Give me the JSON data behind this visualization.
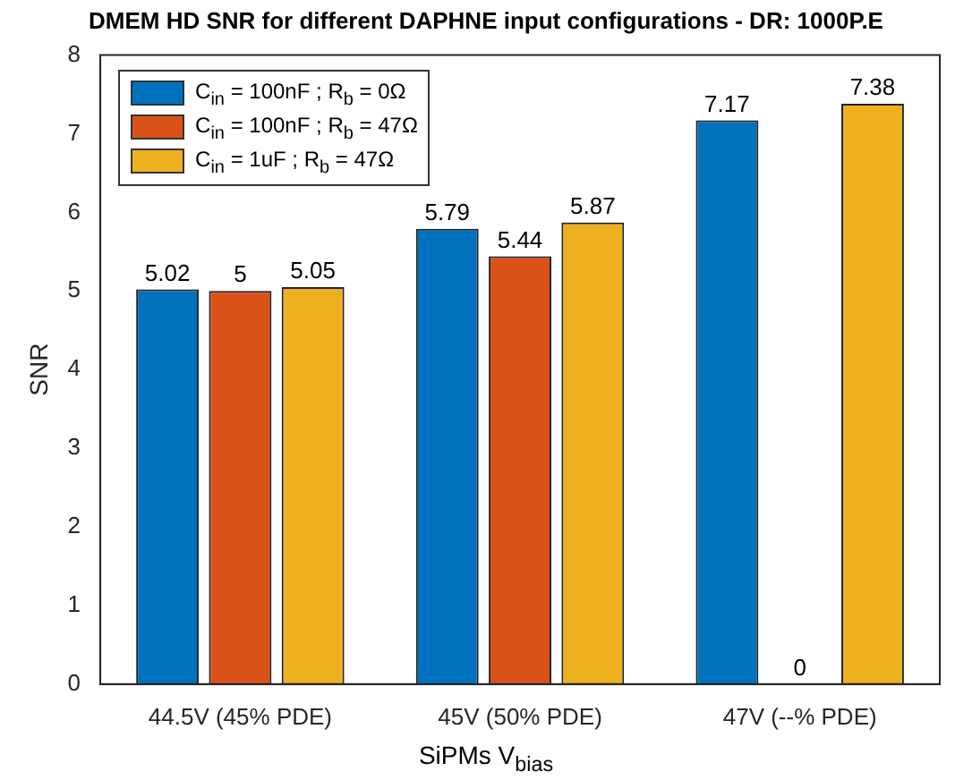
{
  "chart_data": {
    "type": "bar",
    "title": "DMEM HD SNR for different DAPHNE input configurations - DR: 1000P.E",
    "xlabel": "SiPMs V$_{bias}$",
    "ylabel": "SNR",
    "categories": [
      "44.5V (45% PDE)",
      "45V (50% PDE)",
      "47V (--% PDE)"
    ],
    "series": [
      {
        "name": "C$_{in}$ = 100nF ; R$_{b}$ = 0Ω",
        "color": "#0072bd",
        "values": [
          5.02,
          5.79,
          7.17
        ]
      },
      {
        "name": "C$_{in}$ = 100nF ; R$_{b}$ = 47Ω",
        "color": "#d95319",
        "values": [
          5,
          5.44,
          0
        ]
      },
      {
        "name": "C$_{in}$ = 1uF ; R$_{b}$ = 47Ω",
        "color": "#edb120",
        "values": [
          5.05,
          5.87,
          7.38
        ]
      }
    ],
    "ylim": [
      0,
      8
    ],
    "yticks": [
      0,
      1,
      2,
      3,
      4,
      5,
      6,
      7,
      8
    ],
    "grid": false,
    "legend": "top left",
    "data_labels": true
  }
}
